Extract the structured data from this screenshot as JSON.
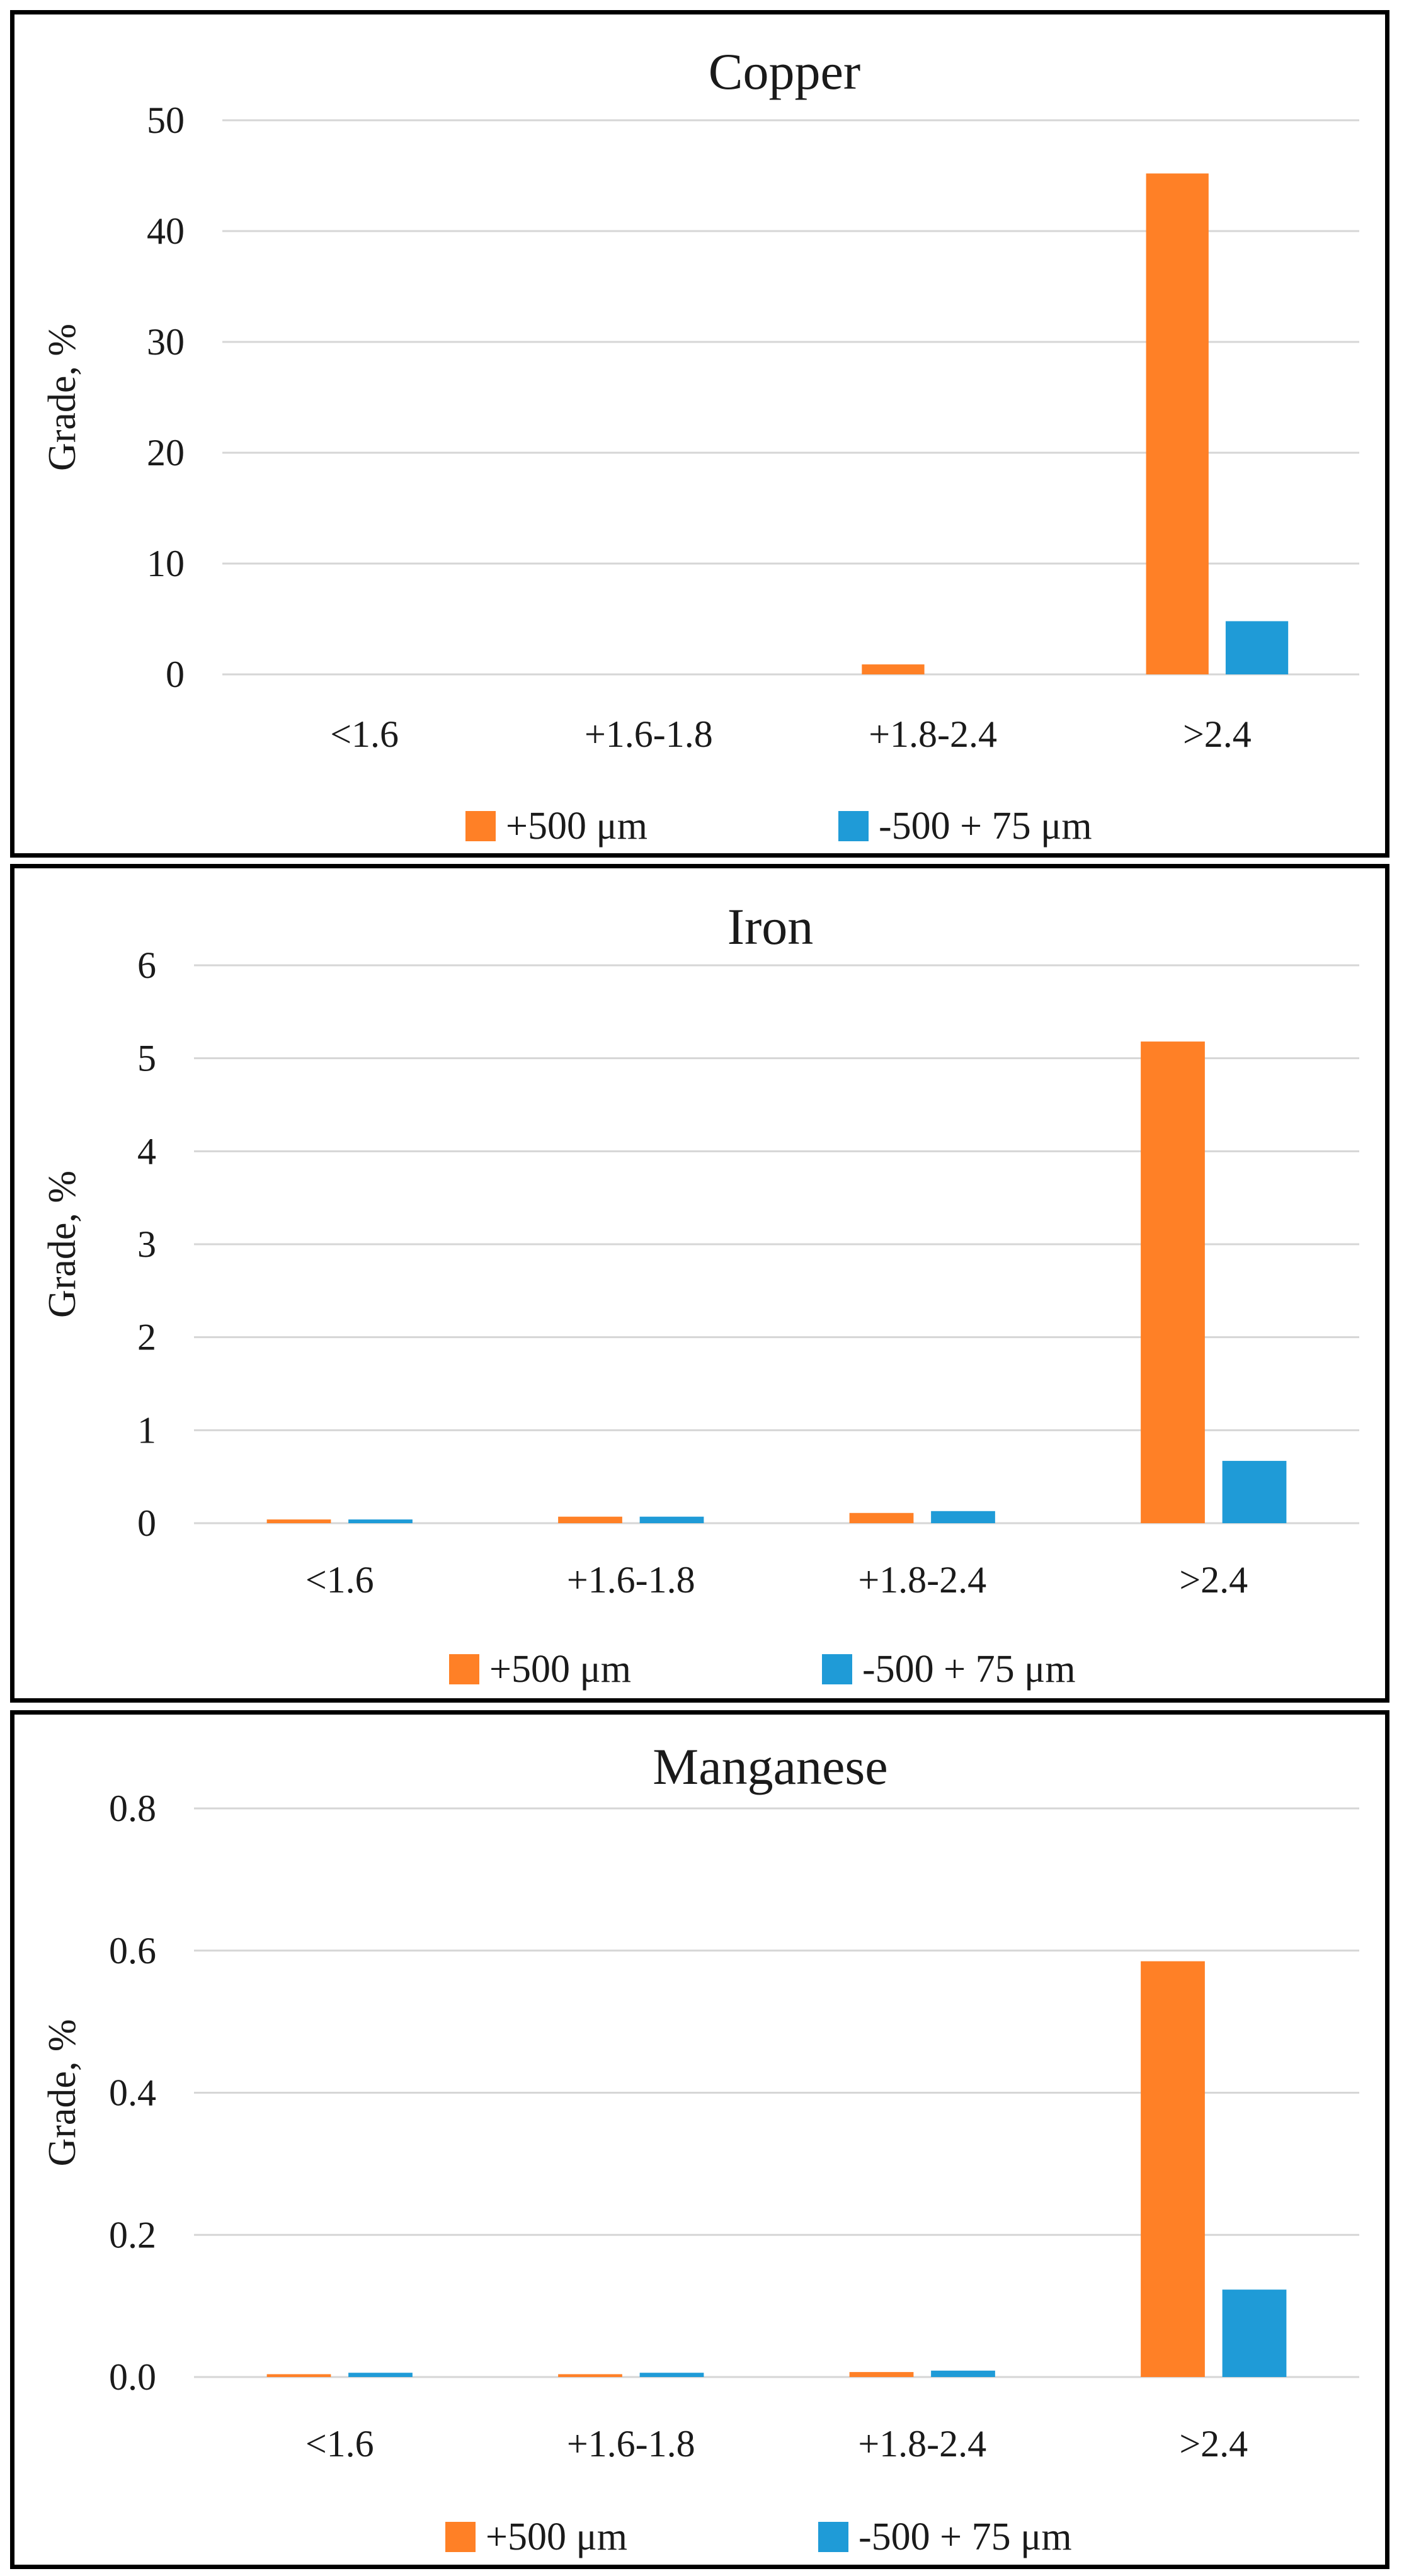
{
  "chart_data": [
    {
      "type": "bar",
      "title": "Copper",
      "ylabel": "Grade, %",
      "xlabel": "",
      "categories": [
        "<1.6",
        "+1.6-1.8",
        "+1.8-2.4",
        ">2.4"
      ],
      "yticks": [
        "0",
        "10",
        "20",
        "30",
        "40",
        "50"
      ],
      "ylim": [
        0,
        50
      ],
      "legend_position": "bottom",
      "series": [
        {
          "name": "+500 μm",
          "color": "#FF8026",
          "values": [
            0,
            0,
            0.9,
            45.2
          ]
        },
        {
          "name": "-500 + 75 μm",
          "color": "#1F9BD7",
          "values": [
            0,
            0,
            0,
            4.8
          ]
        }
      ]
    },
    {
      "type": "bar",
      "title": "Iron",
      "ylabel": "Grade, %",
      "xlabel": "",
      "categories": [
        "<1.6",
        "+1.6-1.8",
        "+1.8-2.4",
        ">2.4"
      ],
      "yticks": [
        "0",
        "1",
        "2",
        "3",
        "4",
        "5",
        "6"
      ],
      "ylim": [
        0,
        6
      ],
      "legend_position": "bottom",
      "series": [
        {
          "name": "+500 μm",
          "color": "#FF8026",
          "values": [
            0.04,
            0.07,
            0.11,
            5.18
          ]
        },
        {
          "name": "-500 + 75 μm",
          "color": "#1F9BD7",
          "values": [
            0.04,
            0.07,
            0.13,
            0.67
          ]
        }
      ]
    },
    {
      "type": "bar",
      "title": "Manganese",
      "ylabel": "Grade, %",
      "xlabel": "",
      "categories": [
        "<1.6",
        "+1.6-1.8",
        "+1.8-2.4",
        ">2.4"
      ],
      "yticks": [
        "0.0",
        "0.2",
        "0.4",
        "0.6",
        "0.8"
      ],
      "ylim": [
        0,
        0.8
      ],
      "legend_position": "bottom",
      "series": [
        {
          "name": "+500 μm",
          "color": "#FF8026",
          "values": [
            0.004,
            0.004,
            0.007,
            0.585
          ]
        },
        {
          "name": "-500 + 75 μm",
          "color": "#1F9BD7",
          "values": [
            0.006,
            0.006,
            0.009,
            0.123
          ]
        }
      ]
    }
  ]
}
